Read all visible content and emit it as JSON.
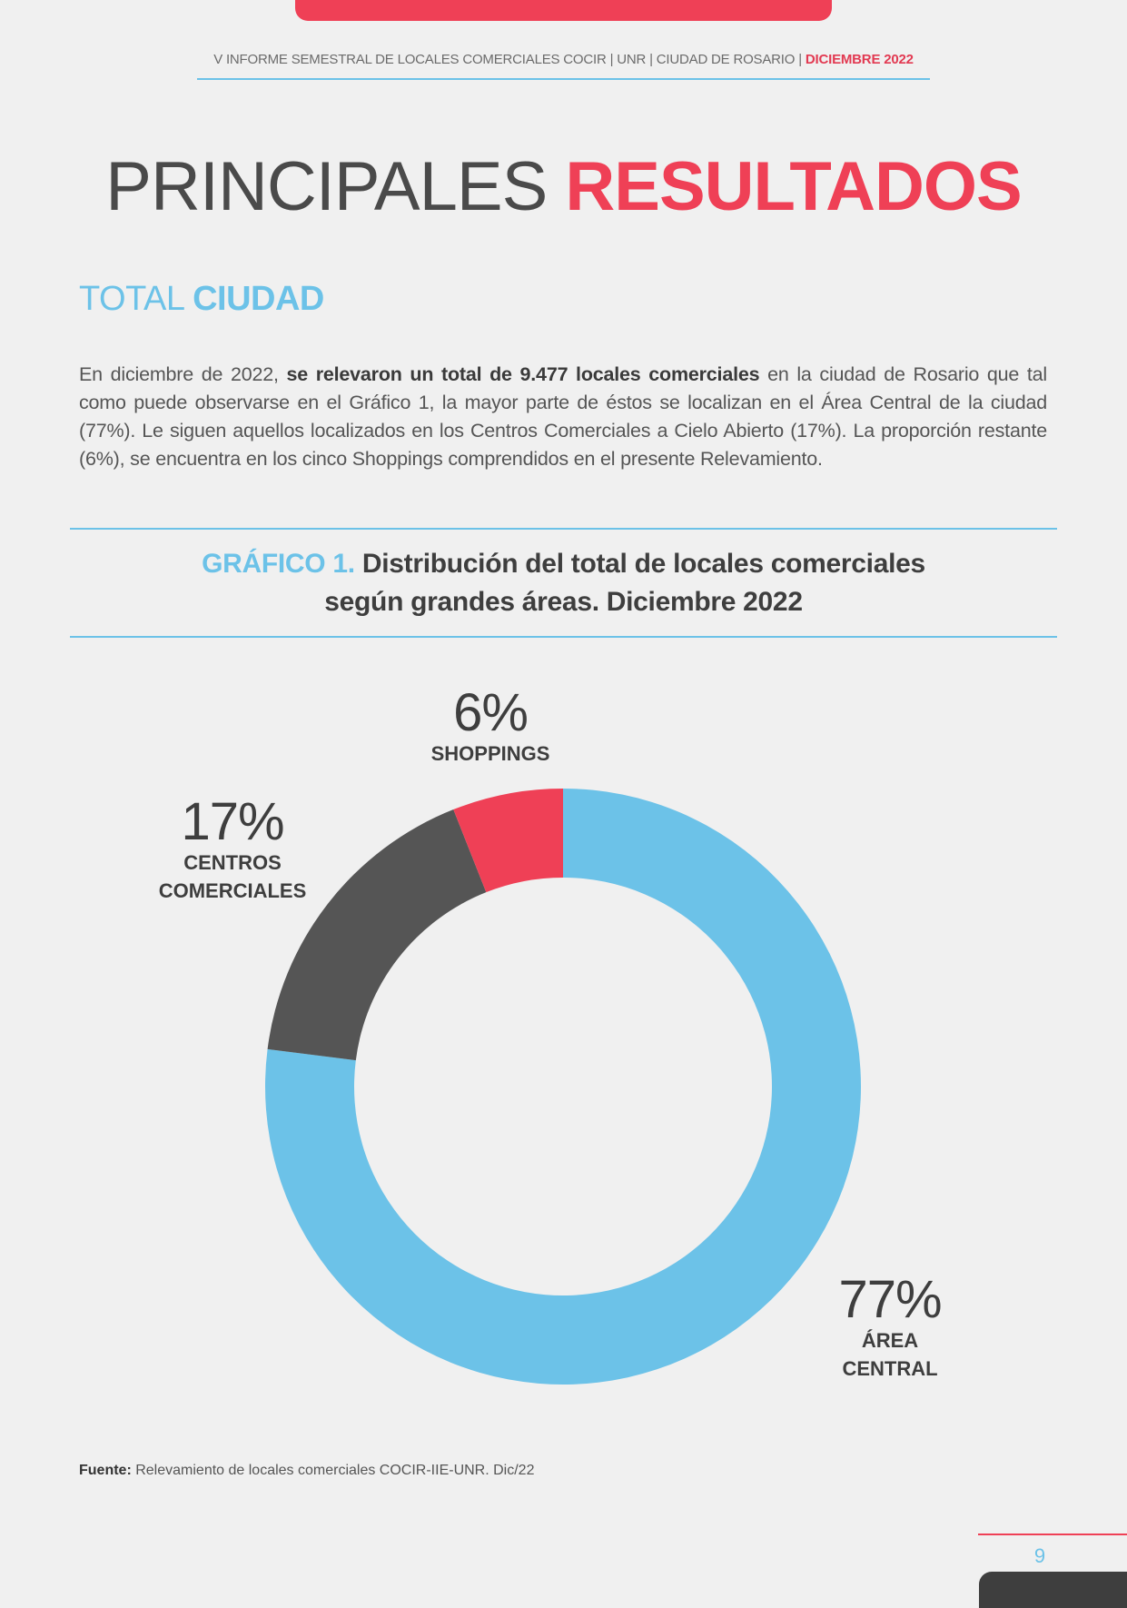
{
  "header": {
    "report_line": "V INFORME SEMESTRAL DE LOCALES COMERCIALES COCIR | UNR | CIUDAD DE ROSARIO | ",
    "report_date": "DICIEMBRE 2022"
  },
  "title": {
    "light": "PRINCIPALES",
    "bold": "RESULTADOS"
  },
  "section": {
    "light": "TOTAL",
    "bold": "CIUDAD"
  },
  "paragraph": {
    "part1": "En diciembre de 2022, ",
    "bold": "se relevaron un total de 9.477 locales comerciales",
    "part2": " en la ciudad de Rosario que tal como puede observarse en el Gráfico 1, la mayor parte de éstos se localizan en el Área Central de la ciudad (77%). Le siguen aquellos localizados en los Centros Comerciales a Cielo Abierto (17%). La proporción restante (6%), se encuentra en los cinco Shoppings comprendidos en el presente Relevamiento."
  },
  "chart_heading": {
    "number": "GRÁFICO 1.",
    "line1": "Distribución del total de locales comerciales",
    "line2": "según grandes áreas. Diciembre 2022"
  },
  "chart_data": {
    "type": "pie",
    "donut": true,
    "slices": [
      {
        "pct_label": "77%",
        "category_line1": "ÁREA",
        "category_line2": "CENTRAL",
        "value": 77,
        "color": "#6cc2e8"
      },
      {
        "pct_label": "17%",
        "category_line1": "CENTROS",
        "category_line2": "COMERCIALES",
        "value": 17,
        "color": "#555555"
      },
      {
        "pct_label": "6%",
        "category_line1": "SHOPPINGS",
        "category_line2": "",
        "value": 6,
        "color": "#ef4056"
      }
    ]
  },
  "source": {
    "label": "Fuente:",
    "text": " Relevamiento de locales comerciales COCIR-IIE-UNR. Dic/22"
  },
  "page_number": "9",
  "colors": {
    "accent_red": "#ef4056",
    "accent_blue": "#6cc2e8",
    "dark_gray": "#555555"
  }
}
